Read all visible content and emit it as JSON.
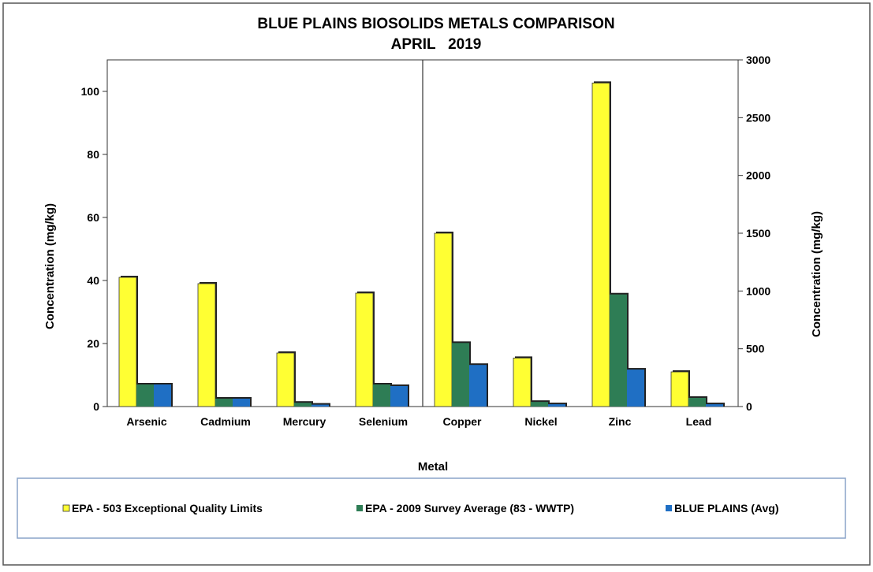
{
  "chart_data": {
    "type": "bar",
    "title": "BLUE PLAINS BIOSOLIDS METALS COMPARISON",
    "subtitle": "APRIL   2019",
    "xlabel": "Metal",
    "ylabel_left": "Concentration (mg/kg)",
    "ylabel_right": "Concentration (mg/kg)",
    "left_axis": {
      "ylim": [
        0,
        110
      ],
      "ticks": [
        "0",
        "20",
        "40",
        "60",
        "80",
        "100"
      ]
    },
    "right_axis": {
      "ylim": [
        0,
        3000
      ],
      "ticks": [
        "0",
        "500",
        "1000",
        "1500",
        "2000",
        "2500",
        "3000"
      ]
    },
    "grid": false,
    "legend_position": "bottom",
    "categories": [
      "Arsenic",
      "Cadmium",
      "Mercury",
      "Selenium",
      "Copper",
      "Nickel",
      "Zinc",
      "Lead"
    ],
    "category_axis": [
      "left",
      "left",
      "left",
      "left",
      "right",
      "right",
      "right",
      "right"
    ],
    "series": [
      {
        "name": "EPA - 503 Exceptional Quality Limits",
        "legend_label": "EPA - 503 Exceptional Quality Limits",
        "color": "#ffff33",
        "values": [
          41,
          39,
          17,
          36,
          1500,
          420,
          2800,
          300
        ]
      },
      {
        "name": "EPA - 2009 Survey Average (83 - WWTP)",
        "legend_label": "EPA - 2009 Survey Average (83 - WWTP)",
        "color": "#2e7d55",
        "values": [
          7,
          2.5,
          1.2,
          7,
          550,
          40,
          970,
          75
        ]
      },
      {
        "name": "BLUE PLAINS (Avg)",
        "legend_label": "BLUE PLAINS (Avg)",
        "color": "#1f6fc4",
        "values": [
          7,
          2.5,
          0.6,
          6.5,
          360,
          20,
          320,
          20
        ]
      }
    ]
  }
}
